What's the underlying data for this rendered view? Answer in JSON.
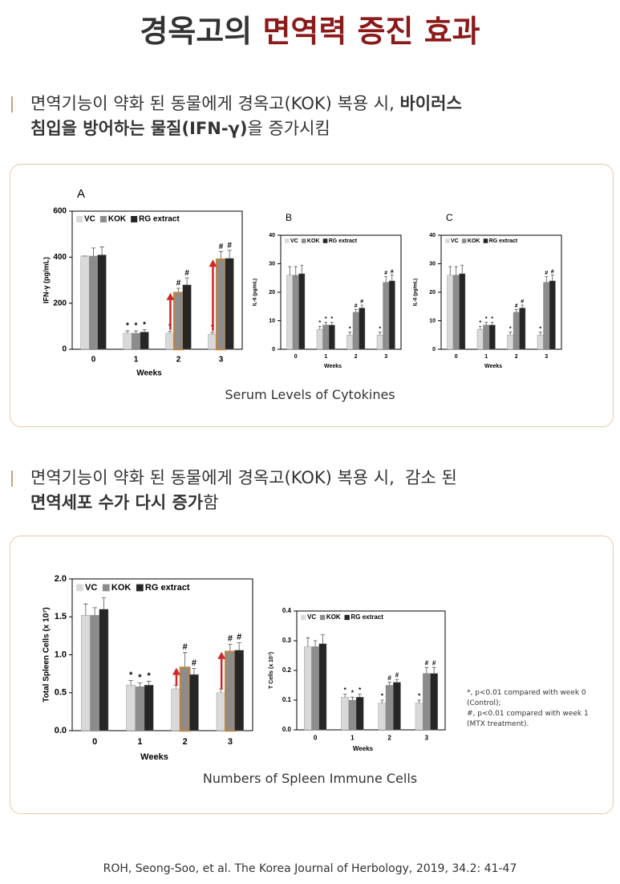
{
  "title": {
    "part1": "경옥고의",
    "part2": "면역력 증진 효과"
  },
  "sections": [
    {
      "lines": [
        [
          {
            "text": "면역기능이 약화 된 동물에게 경옥고(KOK) 복용 시, ",
            "bold": false
          },
          {
            "text": "바이러스",
            "bold": true
          }
        ],
        [
          {
            "text": "침입을 방어하는 물질(IFN-γ)",
            "bold": true
          },
          {
            "text": "을 증가시킴",
            "bold": false
          }
        ]
      ],
      "caption": "Serum Levels of Cytokines"
    },
    {
      "lines": [
        [
          {
            "text": "면역기능이 약화 된 동물에게 경옥고(KOK) 복용 시,  감소 된",
            "bold": false
          }
        ],
        [
          {
            "text": "면역세포 수가 다시 증가",
            "bold": true
          },
          {
            "text": "함",
            "bold": false
          }
        ]
      ],
      "caption": "Numbers of Spleen Immune Cells"
    }
  ],
  "chart_data": [
    {
      "type": "bar",
      "panel": "A",
      "y_label": "IFN-γ (pg/mL)",
      "x_label": "Weeks",
      "categories": [
        "0",
        "1",
        "2",
        "3"
      ],
      "series": [
        {
          "name": "VC",
          "color": "#d9d9d9",
          "values": [
            405,
            70,
            70,
            65
          ],
          "errors": [
            0,
            10,
            8,
            8
          ],
          "sig": [
            null,
            "*",
            "*",
            "*"
          ]
        },
        {
          "name": "KOK",
          "color": "#8c8c8c",
          "values": [
            405,
            70,
            245,
            390
          ],
          "errors": [
            35,
            10,
            20,
            35
          ],
          "sig": [
            null,
            "*",
            "#",
            "#"
          ]
        },
        {
          "name": "RG extract",
          "color": "#262626",
          "values": [
            410,
            75,
            280,
            395
          ],
          "errors": [
            35,
            10,
            30,
            35
          ],
          "sig": [
            null,
            "*",
            "#",
            "#"
          ]
        }
      ],
      "ylim": [
        0,
        600
      ],
      "yticks": [
        0,
        200,
        400,
        600
      ],
      "highlight": true
    },
    {
      "type": "bar",
      "panel": "B",
      "y_label": "IL-6 (pg/mL)",
      "x_label": "Weeks",
      "categories": [
        "0",
        "1",
        "2",
        "3"
      ],
      "series": [
        {
          "name": "VC",
          "color": "#d9d9d9",
          "values": [
            26,
            7,
            5,
            5
          ],
          "errors": [
            3,
            1,
            1,
            1
          ],
          "sig": [
            null,
            "*",
            "*",
            "*"
          ]
        },
        {
          "name": "KOK",
          "color": "#8c8c8c",
          "values": [
            26,
            8.5,
            13,
            23.5
          ],
          "errors": [
            3,
            1,
            1,
            2
          ],
          "sig": [
            null,
            "*",
            "#",
            "#"
          ]
        },
        {
          "name": "RG extract",
          "color": "#262626",
          "values": [
            26.5,
            8.5,
            14.5,
            24
          ],
          "errors": [
            3,
            1,
            1,
            2
          ],
          "sig": [
            null,
            "*",
            "#",
            "#"
          ]
        }
      ],
      "ylim": [
        0,
        40
      ],
      "yticks": [
        0,
        10,
        20,
        30,
        40
      ],
      "highlight": false
    },
    {
      "type": "bar",
      "panel": "C",
      "y_label": "IL-6 (pg/mL)",
      "x_label": "Weeks",
      "categories": [
        "0",
        "1",
        "2",
        "3"
      ],
      "series": [
        {
          "name": "VC",
          "color": "#d9d9d9",
          "values": [
            26,
            7,
            5,
            5
          ],
          "errors": [
            3,
            1,
            1,
            1
          ],
          "sig": [
            null,
            "*",
            "*",
            "*"
          ]
        },
        {
          "name": "KOK",
          "color": "#8c8c8c",
          "values": [
            26,
            8.5,
            13,
            23.5
          ],
          "errors": [
            3,
            1,
            1,
            2
          ],
          "sig": [
            null,
            "*",
            "#",
            "#"
          ]
        },
        {
          "name": "RG extract",
          "color": "#262626",
          "values": [
            26.5,
            8.5,
            14.5,
            24
          ],
          "errors": [
            3,
            1,
            1,
            2
          ],
          "sig": [
            null,
            "*",
            "#",
            "#"
          ]
        }
      ],
      "ylim": [
        0,
        40
      ],
      "yticks": [
        0,
        10,
        20,
        30,
        40
      ],
      "highlight": false
    },
    {
      "type": "bar",
      "y_label": "Total Spleen Cells (x 10⁷)",
      "x_label": "Weeks",
      "categories": [
        "0",
        "1",
        "2",
        "3"
      ],
      "series": [
        {
          "name": "VC",
          "color": "#d9d9d9",
          "values": [
            1.52,
            0.6,
            0.55,
            0.5
          ],
          "errors": [
            0.15,
            0.06,
            0.05,
            0.05
          ],
          "sig": [
            null,
            "*",
            null,
            null
          ]
        },
        {
          "name": "KOK",
          "color": "#8c8c8c",
          "values": [
            1.52,
            0.58,
            0.83,
            1.04
          ],
          "errors": [
            0.1,
            0.05,
            0.2,
            0.1
          ],
          "sig": [
            null,
            "*",
            "#",
            "#"
          ]
        },
        {
          "name": "RG extract",
          "color": "#262626",
          "values": [
            1.6,
            0.6,
            0.74,
            1.06
          ],
          "errors": [
            0.15,
            0.05,
            0.08,
            0.1
          ],
          "sig": [
            null,
            "*",
            "#",
            "#"
          ]
        }
      ],
      "ylim": [
        0,
        2
      ],
      "yticks": [
        {
          "value": 0,
          "label": "0.0"
        },
        0.5,
        {
          "value": 1,
          "label": "1.0"
        },
        1.5,
        {
          "value": 2,
          "label": "2.0"
        }
      ],
      "highlight": true
    },
    {
      "type": "bar",
      "y_label": "T Cells (x 10⁷)",
      "x_label": "Weeks",
      "categories": [
        "0",
        "1",
        "2",
        "3"
      ],
      "series": [
        {
          "name": "VC",
          "color": "#d9d9d9",
          "values": [
            0.28,
            0.11,
            0.09,
            0.09
          ],
          "errors": [
            0.03,
            0.01,
            0.01,
            0.01
          ],
          "sig": [
            null,
            "*",
            "*",
            "*"
          ]
        },
        {
          "name": "KOK",
          "color": "#8c8c8c",
          "values": [
            0.28,
            0.1,
            0.15,
            0.19
          ],
          "errors": [
            0.02,
            0.01,
            0.01,
            0.02
          ],
          "sig": [
            null,
            "*",
            "#",
            "#"
          ]
        },
        {
          "name": "RG extract",
          "color": "#262626",
          "values": [
            0.29,
            0.11,
            0.16,
            0.19
          ],
          "errors": [
            0.03,
            0.01,
            0.01,
            0.02
          ],
          "sig": [
            null,
            "*",
            "#",
            "#"
          ]
        }
      ],
      "ylim": [
        0,
        0.4
      ],
      "yticks": [
        {
          "value": 0,
          "label": "0.0"
        },
        0.1,
        0.2,
        0.3,
        0.4
      ],
      "highlight": false
    }
  ],
  "footnote": [
    "*, p<0.01 compared with week 0 (Control);",
    "#, p<0.01 compared with week 1 (MTX treatment)."
  ],
  "citation": "ROH, Seong-Soo, et al. The Korea Journal of Herbology, 2019, 34.2: 41-47"
}
